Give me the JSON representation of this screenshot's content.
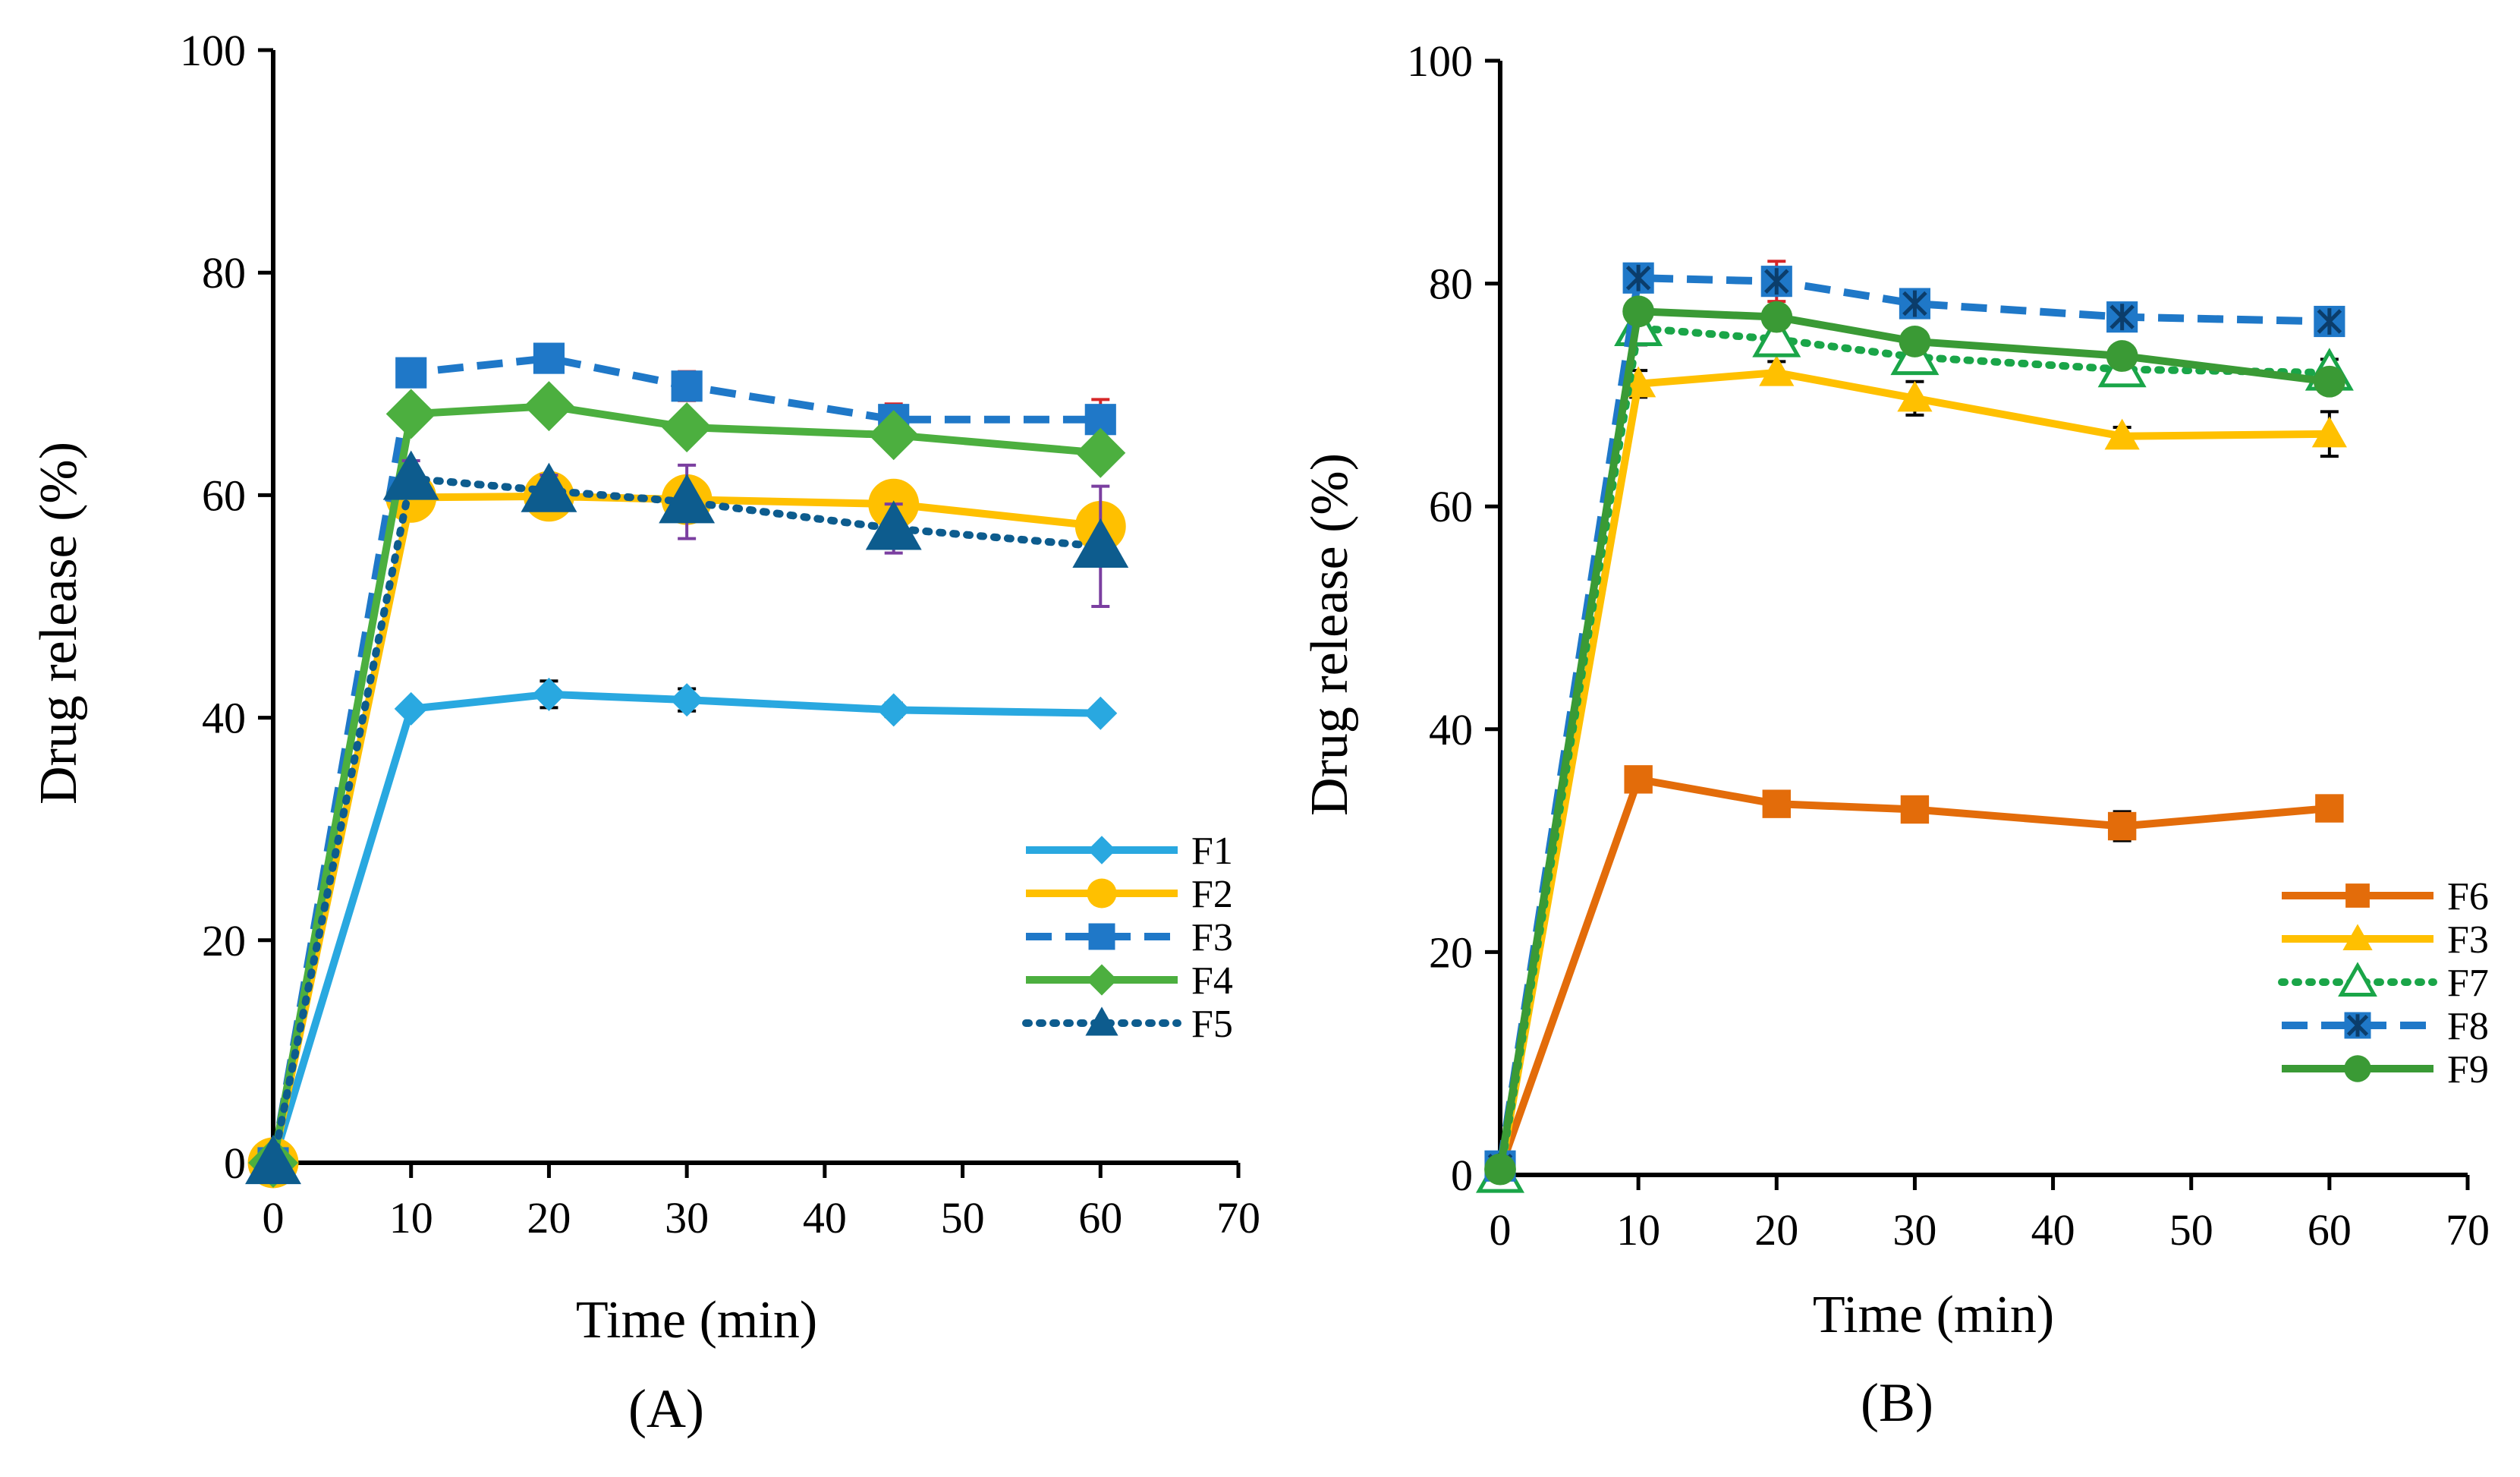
{
  "chart_data": [
    {
      "type": "line",
      "panel_label": "(A)",
      "xlabel": "Time (min)",
      "ylabel": "Drug release (%)",
      "xlim": [
        0,
        70
      ],
      "ylim": [
        0,
        100
      ],
      "x_ticks": [
        0,
        10,
        20,
        30,
        40,
        50,
        60,
        70
      ],
      "y_ticks": [
        0,
        20,
        40,
        60,
        80,
        100
      ],
      "grid": false,
      "legend_position": "bottom-right",
      "x": [
        0,
        10,
        20,
        30,
        45,
        60
      ],
      "series": [
        {
          "name": "F1",
          "values": [
            0,
            40.8,
            42.1,
            41.6,
            40.7,
            40.4
          ],
          "errors": [
            0,
            0.5,
            1.2,
            1.0,
            0.6,
            0.5
          ],
          "color": "#29a8e0",
          "dash": "solid",
          "marker": "diamond",
          "marker_size": 1
        },
        {
          "name": "F2",
          "values": [
            0,
            59.8,
            59.9,
            59.6,
            59.2,
            57.2
          ],
          "errors": [
            0,
            0.8,
            1.6,
            1.2,
            1.6,
            1.2
          ],
          "color": "#ffc000",
          "dash": "solid",
          "marker": "circle",
          "marker_size": 1.6
        },
        {
          "name": "F3",
          "values": [
            0,
            71.0,
            72.3,
            69.8,
            66.8,
            66.8
          ],
          "errors": [
            0,
            0.8,
            0.8,
            1.3,
            1.4,
            1.8
          ],
          "color": "#1f78c8",
          "dash": "dashed",
          "marker": "square",
          "marker_size": 1.1,
          "error_color": "#d62728"
        },
        {
          "name": "F4",
          "values": [
            0,
            67.3,
            68.0,
            66.1,
            65.4,
            63.8
          ],
          "errors": [
            0,
            0.8,
            0.9,
            0.9,
            1.1,
            1.3
          ],
          "color": "#4caf3f",
          "dash": "solid",
          "marker": "diamond",
          "marker_size": 1.5
        },
        {
          "name": "F5",
          "values": [
            0,
            61.5,
            60.4,
            59.4,
            57.0,
            55.4
          ],
          "errors": [
            0,
            1.6,
            1.4,
            3.3,
            2.2,
            5.4
          ],
          "color": "#0d5c8e",
          "dash": "dotted",
          "marker": "triangle",
          "marker_size": 1.6,
          "error_color": "#7b3fa0"
        }
      ]
    },
    {
      "type": "line",
      "panel_label": "(B)",
      "xlabel": "Time (min)",
      "ylabel": "Drug release (%)",
      "xlim": [
        0,
        70
      ],
      "ylim": [
        0,
        100
      ],
      "x_ticks": [
        0,
        10,
        20,
        30,
        40,
        50,
        60,
        70
      ],
      "y_ticks": [
        0,
        20,
        40,
        60,
        80,
        100
      ],
      "grid": false,
      "legend_position": "bottom-right",
      "x": [
        0,
        10,
        20,
        30,
        45,
        60
      ],
      "series": [
        {
          "name": "F6",
          "values": [
            0.5,
            35.5,
            33.3,
            32.8,
            31.3,
            32.9
          ],
          "errors": [
            0,
            0.6,
            0.8,
            0.6,
            1.3,
            1.0
          ],
          "color": "#e36c0a",
          "dash": "solid",
          "marker": "square",
          "marker_size": 1
        },
        {
          "name": "F3",
          "values": [
            0,
            71.0,
            72.0,
            69.7,
            66.3,
            66.5
          ],
          "errors": [
            0,
            1.2,
            1.0,
            1.5,
            0.8,
            2.0
          ],
          "color": "#ffc000",
          "dash": "solid",
          "marker": "triangle",
          "marker_size": 1
        },
        {
          "name": "F7",
          "values": [
            0,
            76.0,
            75.0,
            73.4,
            72.3,
            72.0
          ],
          "errors": [
            0,
            1.5,
            1.2,
            1.0,
            1.0,
            1.2
          ],
          "color": "#1aa548",
          "dash": "dotted",
          "marker": "triangle-open",
          "marker_size": 1.2
        },
        {
          "name": "F8",
          "values": [
            0.8,
            80.5,
            80.2,
            78.2,
            77.0,
            76.6
          ],
          "errors": [
            0,
            1.0,
            1.8,
            0.9,
            0.8,
            0.7
          ],
          "color": "#1f78c8",
          "dash": "dashed",
          "marker": "square-star",
          "marker_size": 1.1,
          "error_color": "#d62728"
        },
        {
          "name": "F9",
          "values": [
            0.5,
            77.5,
            77.0,
            74.8,
            73.5,
            71.2
          ],
          "errors": [
            0,
            1.0,
            1.0,
            0.8,
            0.9,
            1.0
          ],
          "color": "#3a9a35",
          "dash": "solid",
          "marker": "circle",
          "marker_size": 1
        }
      ]
    }
  ]
}
